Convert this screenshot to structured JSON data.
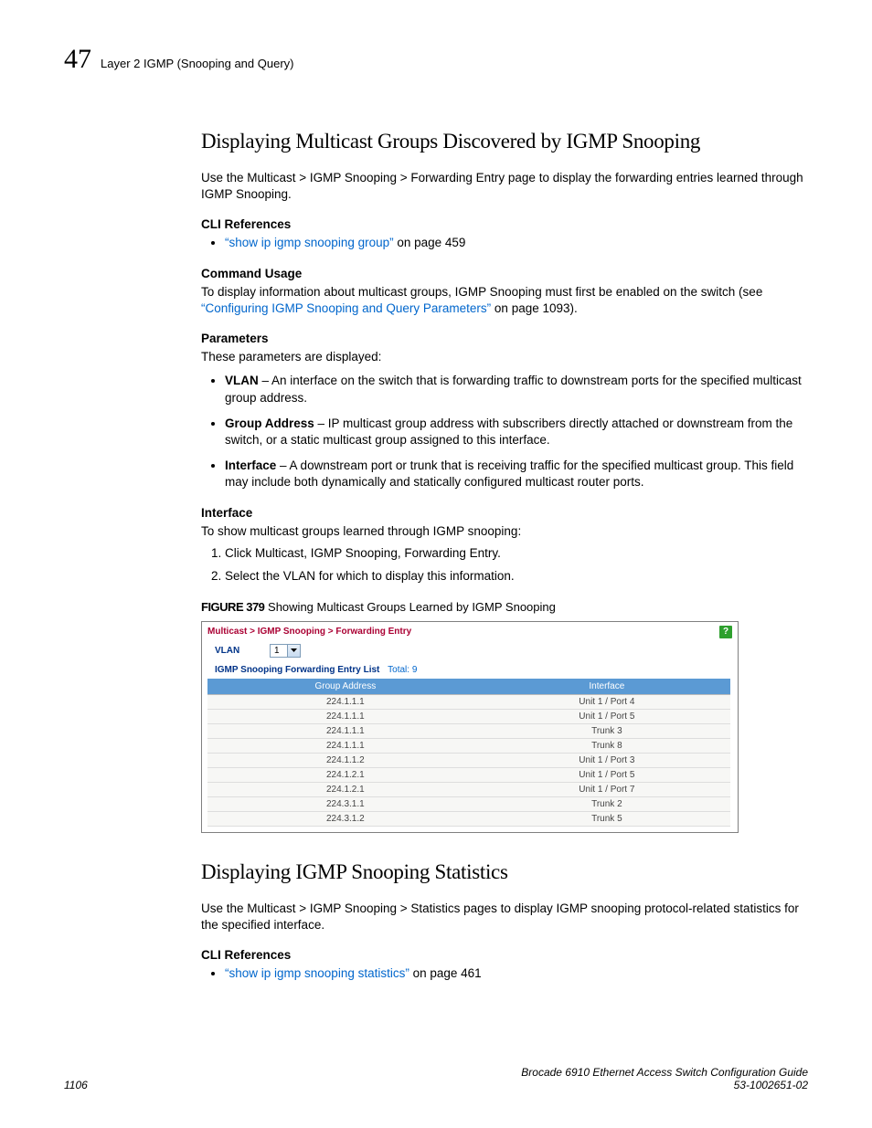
{
  "header": {
    "chapter_num": "47",
    "section_name": "Layer 2 IGMP (Snooping and Query)"
  },
  "section1": {
    "title": "Displaying Multicast Groups Discovered by IGMP Snooping",
    "intro": "Use the Multicast > IGMP Snooping > Forwarding Entry page to display the forwarding entries learned through IGMP Snooping.",
    "cli_head": "CLI References",
    "cli_link": "“show ip igmp snooping group”",
    "cli_link_suffix": " on page 459",
    "usage_head": "Command Usage",
    "usage_pre": "To display information about multicast groups, IGMP Snooping must first be enabled on the switch (see ",
    "usage_link": "“Configuring IGMP Snooping and Query Parameters”",
    "usage_post": " on page 1093).",
    "params_head": "Parameters",
    "params_intro": "These parameters are displayed:",
    "params": [
      {
        "term": "VLAN",
        "desc": " – An interface on the switch that is forwarding traffic to downstream ports for the specified multicast group address."
      },
      {
        "term": "Group Address",
        "desc": " – IP multicast group address with subscribers directly attached or downstream from the switch, or a static multicast group assigned to this interface."
      },
      {
        "term": "Interface",
        "desc": " – A downstream port or trunk that is receiving traffic for the specified multicast group. This field may include both dynamically and statically configured multicast router ports."
      }
    ],
    "iface_head": "Interface",
    "iface_intro": "To show multicast groups learned through IGMP snooping:",
    "steps": [
      "Click Multicast, IGMP Snooping, Forwarding Entry.",
      "Select the VLAN for which to display this information."
    ],
    "figure": {
      "label": "FIGURE 379",
      "caption": "  Showing Multicast Groups Learned by IGMP Snooping",
      "breadcrumb": "Multicast > IGMP Snooping > Forwarding Entry",
      "vlan_label": "VLAN",
      "vlan_value": "1",
      "list_title": "IGMP Snooping Forwarding Entry List",
      "total_label": "Total: 9",
      "columns": [
        "Group Address",
        "Interface"
      ],
      "rows": [
        [
          "224.1.1.1",
          "Unit 1 / Port 4"
        ],
        [
          "224.1.1.1",
          "Unit 1 / Port 5"
        ],
        [
          "224.1.1.1",
          "Trunk 3"
        ],
        [
          "224.1.1.1",
          "Trunk 8"
        ],
        [
          "224.1.1.2",
          "Unit 1 / Port 3"
        ],
        [
          "224.1.2.1",
          "Unit 1 / Port 5"
        ],
        [
          "224.1.2.1",
          "Unit 1 / Port 7"
        ],
        [
          "224.3.1.1",
          "Trunk 2"
        ],
        [
          "224.3.1.2",
          "Trunk 5"
        ]
      ],
      "header_bg": "#5b9ad4",
      "row_bg": "#f7f7f5"
    }
  },
  "section2": {
    "title": "Displaying IGMP Snooping Statistics",
    "intro": "Use the Multicast > IGMP Snooping > Statistics pages to display IGMP snooping protocol-related statistics for the specified interface.",
    "cli_head": "CLI References",
    "cli_link": "“show ip igmp snooping statistics”",
    "cli_link_suffix": " on page 461"
  },
  "footer": {
    "page_num": "1106",
    "book1": "Brocade 6910 Ethernet Access Switch Configuration Guide",
    "book2": "53-1002651-02"
  },
  "colors": {
    "link": "#0066cc",
    "breadcrumb": "#aa0033"
  }
}
